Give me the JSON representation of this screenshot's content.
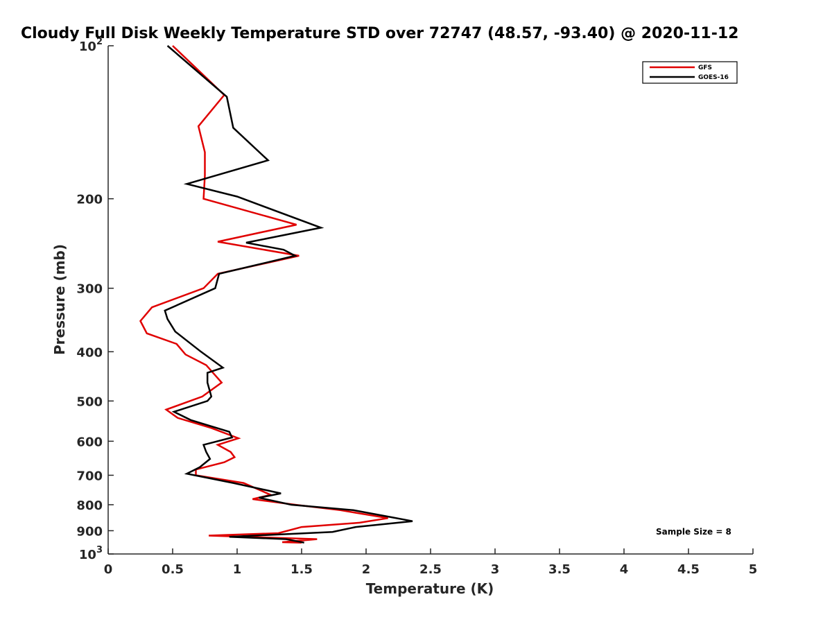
{
  "chart_data": {
    "type": "line",
    "title": "Cloudy Full Disk Weekly Temperature STD over 72747 (48.57, -93.40) @ 2020-11-12",
    "xlabel": "Temperature (K)",
    "ylabel": "Pressure (mb)",
    "xlim": [
      0,
      5
    ],
    "ylim": [
      1000,
      100
    ],
    "yscale": "log",
    "x_ticks": [
      0,
      0.5,
      1,
      1.5,
      2,
      2.5,
      3,
      3.5,
      4,
      4.5,
      5
    ],
    "x_tick_labels": [
      "0",
      "0.5",
      "1",
      "1.5",
      "2",
      "2.5",
      "3",
      "3.5",
      "4",
      "4.5",
      "5"
    ],
    "y_ticks": [
      {
        "value": 100,
        "label": "10",
        "sup": "2"
      },
      {
        "value": 200,
        "label": "200",
        "sup": ""
      },
      {
        "value": 300,
        "label": "300",
        "sup": ""
      },
      {
        "value": 400,
        "label": "400",
        "sup": ""
      },
      {
        "value": 500,
        "label": "500",
        "sup": ""
      },
      {
        "value": 600,
        "label": "600",
        "sup": ""
      },
      {
        "value": 700,
        "label": "700",
        "sup": ""
      },
      {
        "value": 800,
        "label": "800",
        "sup": ""
      },
      {
        "value": 900,
        "label": "900",
        "sup": ""
      },
      {
        "value": 1000,
        "label": "10",
        "sup": "3"
      }
    ],
    "legend_position": "top-right",
    "series": [
      {
        "name": "GFS",
        "color": "#e00000",
        "points": [
          [
            0.5,
            100
          ],
          [
            0.9,
            125
          ],
          [
            0.7,
            144
          ],
          [
            0.75,
            162
          ],
          [
            0.75,
            180
          ],
          [
            0.74,
            200
          ],
          [
            1.46,
            225
          ],
          [
            0.85,
            243
          ],
          [
            1.48,
            259
          ],
          [
            0.85,
            281
          ],
          [
            0.74,
            300
          ],
          [
            0.34,
            327
          ],
          [
            0.25,
            348
          ],
          [
            0.3,
            368
          ],
          [
            0.53,
            386
          ],
          [
            0.6,
            405
          ],
          [
            0.76,
            425
          ],
          [
            0.88,
            460
          ],
          [
            0.73,
            490
          ],
          [
            0.45,
            520
          ],
          [
            0.54,
            540
          ],
          [
            0.8,
            565
          ],
          [
            1.01,
            592
          ],
          [
            0.85,
            610
          ],
          [
            0.95,
            630
          ],
          [
            0.98,
            645
          ],
          [
            0.9,
            660
          ],
          [
            0.68,
            682
          ],
          [
            0.68,
            700
          ],
          [
            1.05,
            725
          ],
          [
            1.26,
            765
          ],
          [
            1.12,
            780
          ],
          [
            1.45,
            800
          ],
          [
            1.8,
            820
          ],
          [
            2.17,
            850
          ],
          [
            1.95,
            868
          ],
          [
            1.5,
            885
          ],
          [
            1.32,
            910
          ],
          [
            0.78,
            920
          ],
          [
            1.62,
            935
          ],
          [
            1.35,
            948
          ],
          [
            1.5,
            950
          ]
        ]
      },
      {
        "name": "GOES-16",
        "color": "#000000",
        "points": [
          [
            0.46,
            100
          ],
          [
            0.92,
            126
          ],
          [
            0.97,
            145
          ],
          [
            1.24,
            168
          ],
          [
            0.61,
            187
          ],
          [
            1.0,
            198
          ],
          [
            1.65,
            228
          ],
          [
            1.07,
            244
          ],
          [
            1.36,
            252
          ],
          [
            1.45,
            259
          ],
          [
            0.86,
            281
          ],
          [
            0.83,
            300
          ],
          [
            0.44,
            332
          ],
          [
            0.46,
            345
          ],
          [
            0.52,
            365
          ],
          [
            0.72,
            400
          ],
          [
            0.89,
            430
          ],
          [
            0.77,
            440
          ],
          [
            0.77,
            460
          ],
          [
            0.8,
            490
          ],
          [
            0.77,
            500
          ],
          [
            0.51,
            525
          ],
          [
            0.64,
            545
          ],
          [
            0.94,
            575
          ],
          [
            0.96,
            590
          ],
          [
            0.74,
            610
          ],
          [
            0.76,
            630
          ],
          [
            0.79,
            650
          ],
          [
            0.71,
            675
          ],
          [
            0.61,
            695
          ],
          [
            0.97,
            725
          ],
          [
            1.34,
            760
          ],
          [
            1.17,
            775
          ],
          [
            1.42,
            800
          ],
          [
            1.9,
            820
          ],
          [
            2.2,
            847
          ],
          [
            2.36,
            862
          ],
          [
            1.92,
            885
          ],
          [
            1.74,
            905
          ],
          [
            0.94,
            925
          ],
          [
            1.38,
            935
          ],
          [
            1.52,
            950
          ]
        ]
      }
    ],
    "annotations": [
      "Sample Size = 8"
    ]
  }
}
